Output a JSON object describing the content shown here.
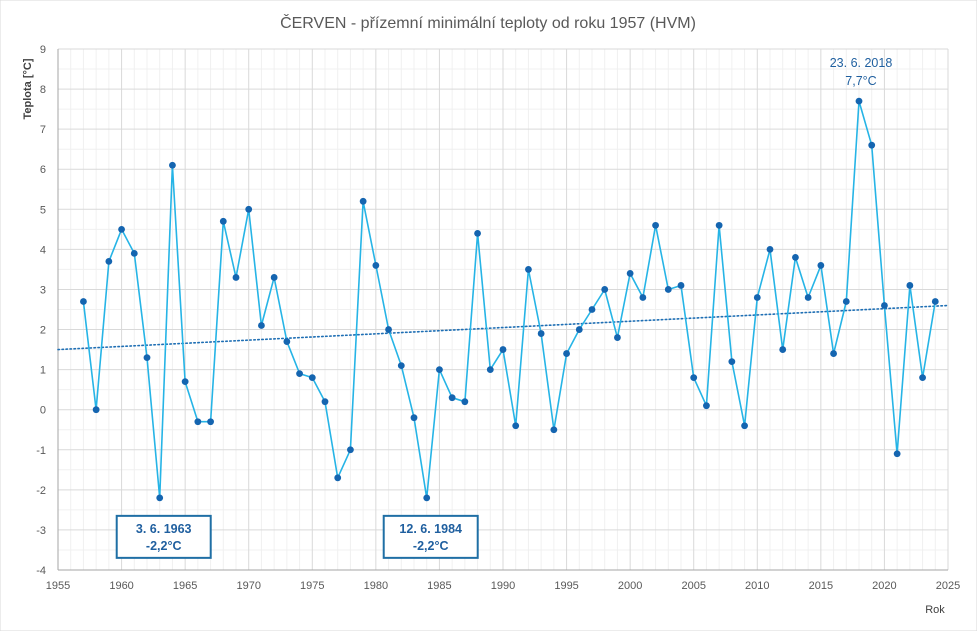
{
  "chart_data": {
    "type": "line",
    "title": "ČERVEN - přízemní minimální teploty od roku 1957 (HVM)",
    "xlabel": "Rok",
    "ylabel": "Teplota [°C]",
    "xlim": [
      1955,
      2025
    ],
    "ylim": [
      -4,
      9
    ],
    "x_ticks": [
      1955,
      1960,
      1965,
      1970,
      1975,
      1980,
      1985,
      1990,
      1995,
      2000,
      2005,
      2010,
      2015,
      2020,
      2025
    ],
    "y_ticks": [
      -4,
      -3,
      -2,
      -1,
      0,
      1,
      2,
      3,
      4,
      5,
      6,
      7,
      8,
      9
    ],
    "grid": true,
    "series_color": "#26b4e6",
    "marker_color": "#1565b0",
    "trend_color": "#1f6fb4",
    "x": [
      1957,
      1958,
      1959,
      1960,
      1961,
      1962,
      1963,
      1964,
      1965,
      1966,
      1967,
      1968,
      1969,
      1970,
      1971,
      1972,
      1973,
      1974,
      1975,
      1976,
      1977,
      1978,
      1979,
      1980,
      1981,
      1982,
      1983,
      1984,
      1985,
      1986,
      1987,
      1988,
      1989,
      1990,
      1991,
      1992,
      1993,
      1994,
      1995,
      1996,
      1997,
      1998,
      1999,
      2000,
      2001,
      2002,
      2003,
      2004,
      2005,
      2006,
      2007,
      2008,
      2009,
      2010,
      2011,
      2012,
      2013,
      2014,
      2015,
      2016,
      2017,
      2018,
      2019,
      2020,
      2021,
      2022,
      2023,
      2024
    ],
    "y": [
      2.7,
      0.0,
      3.7,
      4.5,
      3.9,
      1.3,
      -2.2,
      6.1,
      0.7,
      -0.3,
      -0.3,
      4.7,
      3.3,
      5.0,
      2.1,
      3.3,
      1.7,
      0.9,
      0.8,
      0.2,
      -1.7,
      -1.0,
      5.2,
      3.6,
      2.0,
      1.1,
      -0.2,
      -2.2,
      1.0,
      0.3,
      0.2,
      4.4,
      1.0,
      1.5,
      -0.4,
      3.5,
      1.9,
      -0.5,
      1.4,
      2.0,
      2.5,
      3.0,
      1.8,
      3.4,
      2.8,
      4.6,
      3.0,
      3.1,
      0.8,
      0.1,
      4.6,
      1.2,
      -0.4,
      2.8,
      4.0,
      1.5,
      3.8,
      2.8,
      3.6,
      1.4,
      2.7,
      7.7,
      6.6,
      2.6,
      -1.1,
      3.1,
      0.8,
      2.7
    ],
    "trendline": {
      "type": "linear",
      "x": [
        1955,
        2025
      ],
      "y": [
        1.5,
        2.6
      ]
    },
    "annotations": [
      {
        "date": "3. 6. 1963",
        "value": "-2,2°C",
        "x": 1963,
        "y": -2.2,
        "boxed": true
      },
      {
        "date": "12. 6. 1984",
        "value": "-2,2°C",
        "x": 1984,
        "y": -2.2,
        "boxed": true
      },
      {
        "date": "23. 6. 2018",
        "value": "7,7°C",
        "x": 2018,
        "y": 7.7,
        "boxed": false
      }
    ]
  }
}
